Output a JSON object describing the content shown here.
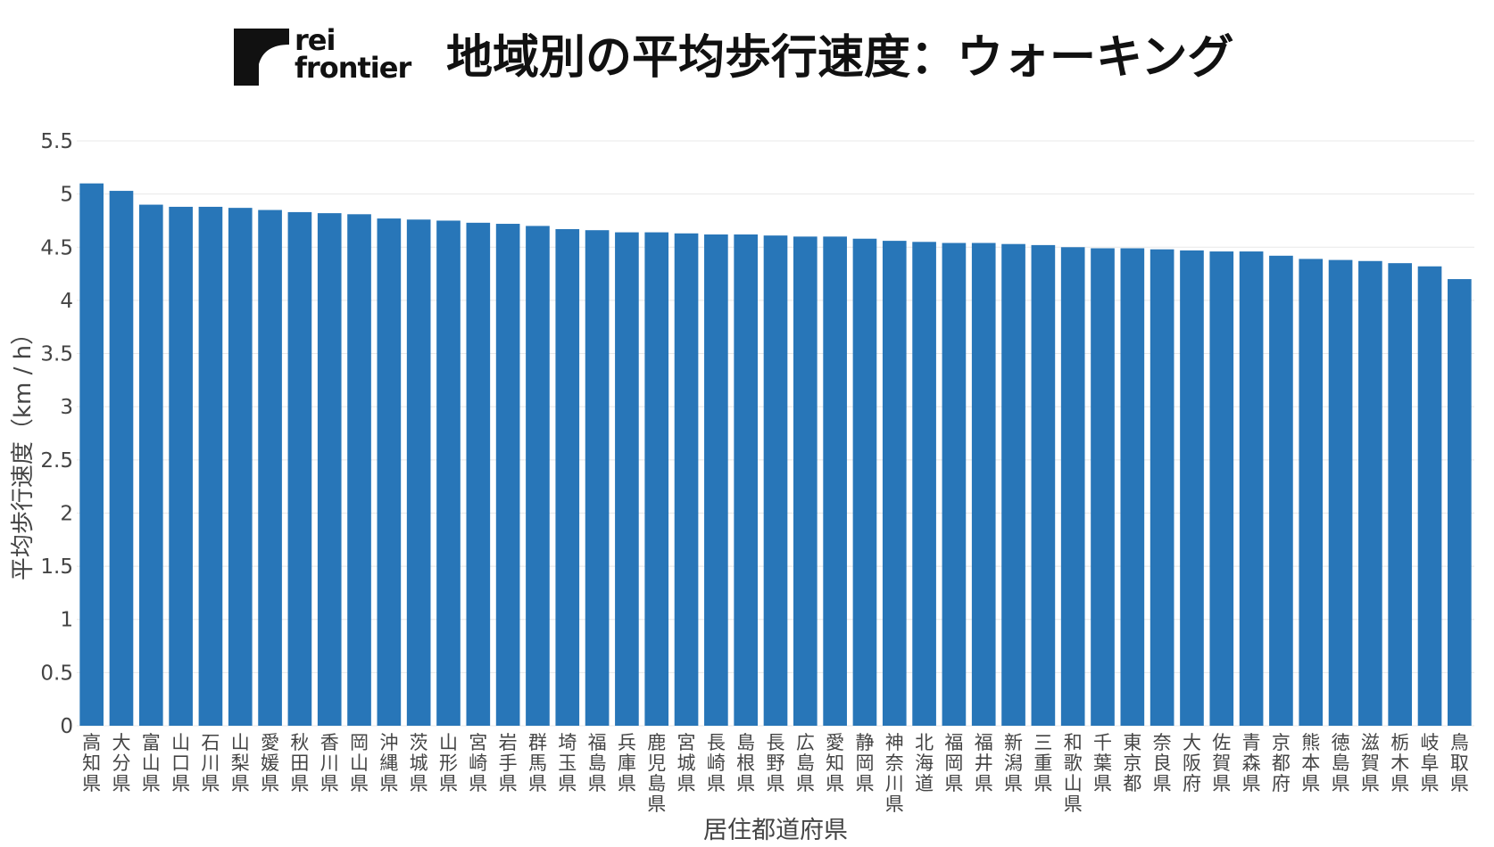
{
  "header": {
    "logo_line1": "rei",
    "logo_line2": "frontier",
    "title": "地域別の平均歩行速度：ウォーキング"
  },
  "colors": {
    "bar": "#2876b8",
    "grid": "#e8e8e8",
    "text": "#444444",
    "logo": "#111111"
  },
  "chart_data": {
    "type": "bar",
    "xlabel": "居住都道府県",
    "ylabel": "平均歩行速度（km / h）",
    "ylim": [
      0,
      5.5
    ],
    "yticks": [
      {
        "value": 0,
        "label": "0"
      },
      {
        "value": 0.5,
        "label": "0.5"
      },
      {
        "value": 1,
        "label": "1"
      },
      {
        "value": 1.5,
        "label": "1.5"
      },
      {
        "value": 2,
        "label": "2"
      },
      {
        "value": 2.5,
        "label": "2.5"
      },
      {
        "value": 3,
        "label": "3"
      },
      {
        "value": 3.5,
        "label": "3.5"
      },
      {
        "value": 4,
        "label": "4"
      },
      {
        "value": 4.5,
        "label": "4.5"
      },
      {
        "value": 5,
        "label": "5"
      },
      {
        "value": 5.5,
        "label": "5.5"
      }
    ],
    "grid": true,
    "legend": false,
    "categories": [
      "高知県",
      "大分県",
      "富山県",
      "山口県",
      "石川県",
      "山梨県",
      "愛媛県",
      "秋田県",
      "香川県",
      "岡山県",
      "沖縄県",
      "茨城県",
      "山形県",
      "宮崎県",
      "岩手県",
      "群馬県",
      "埼玉県",
      "福島県",
      "兵庫県",
      "鹿児島県",
      "宮城県",
      "長崎県",
      "島根県",
      "長野県",
      "広島県",
      "愛知県",
      "静岡県",
      "神奈川県",
      "北海道",
      "福岡県",
      "福井県",
      "新潟県",
      "三重県",
      "和歌山県",
      "千葉県",
      "東京都",
      "奈良県",
      "大阪府",
      "佐賀県",
      "青森県",
      "京都府",
      "熊本県",
      "徳島県",
      "滋賀県",
      "栃木県",
      "岐阜県",
      "鳥取県"
    ],
    "values": [
      5.1,
      5.03,
      4.9,
      4.88,
      4.88,
      4.87,
      4.85,
      4.83,
      4.82,
      4.81,
      4.77,
      4.76,
      4.75,
      4.73,
      4.72,
      4.7,
      4.67,
      4.66,
      4.64,
      4.64,
      4.63,
      4.62,
      4.62,
      4.61,
      4.6,
      4.6,
      4.58,
      4.56,
      4.55,
      4.54,
      4.54,
      4.53,
      4.52,
      4.5,
      4.49,
      4.49,
      4.48,
      4.47,
      4.46,
      4.46,
      4.42,
      4.39,
      4.38,
      4.37,
      4.35,
      4.32,
      4.2
    ]
  }
}
